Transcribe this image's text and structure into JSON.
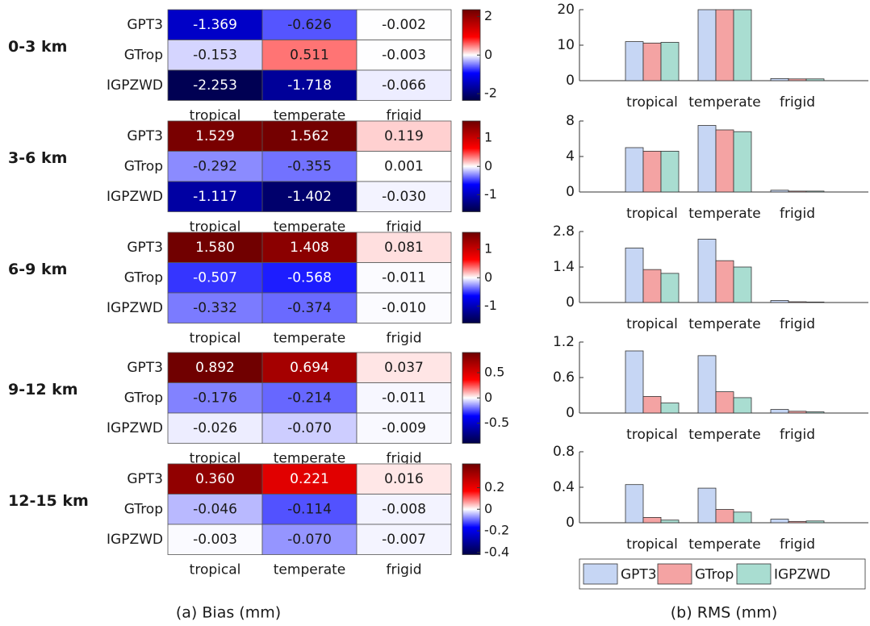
{
  "captions": [
    "(a) Bias (mm)",
    "(b) RMS (mm)"
  ],
  "chart_data": [
    {
      "type": "heatmap",
      "label": "0-3 km",
      "rows": [
        "GPT3",
        "GTrop",
        "IGPZWD"
      ],
      "columns": [
        "tropical",
        "temperate",
        "frigid"
      ],
      "values": [
        [
          -1.369,
          -0.626,
          -0.002
        ],
        [
          -0.153,
          0.511,
          -0.003
        ],
        [
          -2.253,
          -1.718,
          -0.066
        ]
      ],
      "value_labels": [
        [
          "-1.369",
          "-0.626",
          "-0.002"
        ],
        [
          "-0.153",
          "0.511",
          "-0.003"
        ],
        [
          "-2.253",
          "-1.718",
          "-0.066"
        ]
      ],
      "clim": [
        -2.35,
        2.35
      ],
      "cticks": [
        2,
        0,
        -2
      ],
      "colormap": "blue-white-red"
    },
    {
      "type": "heatmap",
      "label": "3-6 km",
      "rows": [
        "GPT3",
        "GTrop",
        "IGPZWD"
      ],
      "columns": [
        "tropical",
        "temperate",
        "frigid"
      ],
      "values": [
        [
          1.529,
          1.562,
          0.119
        ],
        [
          -0.292,
          -0.355,
          0.001
        ],
        [
          -1.117,
          -1.402,
          -0.03
        ]
      ],
      "value_labels": [
        [
          "1.529",
          "1.562",
          "0.119"
        ],
        [
          "-0.292",
          "-0.355",
          "0.001"
        ],
        [
          "-1.117",
          "-1.402",
          "-0.030"
        ]
      ],
      "clim": [
        -1.6,
        1.6
      ],
      "cticks": [
        1,
        0,
        -1
      ],
      "colormap": "blue-white-red"
    },
    {
      "type": "heatmap",
      "label": "6-9 km",
      "rows": [
        "GPT3",
        "GTrop",
        "IGPZWD"
      ],
      "columns": [
        "tropical",
        "temperate",
        "frigid"
      ],
      "values": [
        [
          1.58,
          1.408,
          0.081
        ],
        [
          -0.507,
          -0.568,
          -0.011
        ],
        [
          -0.332,
          -0.374,
          -0.01
        ]
      ],
      "value_labels": [
        [
          "1.580",
          "1.408",
          "0.081"
        ],
        [
          "-0.507",
          "-0.568",
          "-0.011"
        ],
        [
          "-0.332",
          "-0.374",
          "-0.010"
        ]
      ],
      "clim": [
        -1.6,
        1.6
      ],
      "cticks": [
        1,
        0,
        -1
      ],
      "colormap": "blue-white-red"
    },
    {
      "type": "heatmap",
      "label": "9-12 km",
      "rows": [
        "GPT3",
        "GTrop",
        "IGPZWD"
      ],
      "columns": [
        "tropical",
        "temperate",
        "frigid"
      ],
      "values": [
        [
          0.892,
          0.694,
          0.037
        ],
        [
          -0.176,
          -0.214,
          -0.011
        ],
        [
          -0.026,
          -0.07,
          -0.009
        ]
      ],
      "value_labels": [
        [
          "0.892",
          "0.694",
          "0.037"
        ],
        [
          "-0.176",
          "-0.214",
          "-0.011"
        ],
        [
          "-0.026",
          "-0.070",
          "-0.009"
        ]
      ],
      "clim": [
        -0.9,
        0.9
      ],
      "cticks": [
        0.5,
        0,
        -0.5
      ],
      "colormap": "blue-white-red"
    },
    {
      "type": "heatmap",
      "label": "12-15 km",
      "rows": [
        "GPT3",
        "GTrop",
        "IGPZWD"
      ],
      "columns": [
        "tropical",
        "temperate",
        "frigid"
      ],
      "values": [
        [
          0.36,
          0.221,
          0.016
        ],
        [
          -0.046,
          -0.114,
          -0.008
        ],
        [
          -0.003,
          -0.07,
          -0.007
        ]
      ],
      "value_labels": [
        [
          "0.360",
          "0.221",
          "0.016"
        ],
        [
          "-0.046",
          "-0.114",
          "-0.008"
        ],
        [
          "-0.003",
          "-0.070",
          "-0.007"
        ]
      ],
      "clim": [
        -0.42,
        0.42
      ],
      "cticks": [
        0.2,
        0,
        -0.2,
        -0.4
      ],
      "colormap": "blue-white-red"
    },
    {
      "type": "bar",
      "categories": [
        "tropical",
        "temperate",
        "frigid"
      ],
      "ylim": [
        0,
        20
      ],
      "yticks": [
        0,
        10,
        20
      ],
      "series": [
        {
          "name": "GPT3",
          "color": "#c6d6f4",
          "values": [
            11,
            20,
            0.6
          ]
        },
        {
          "name": "GTrop",
          "color": "#f4a3a3",
          "values": [
            10.6,
            20,
            0.5
          ]
        },
        {
          "name": "IGPZWD",
          "color": "#a9ddd1",
          "values": [
            10.8,
            20,
            0.5
          ]
        }
      ]
    },
    {
      "type": "bar",
      "categories": [
        "tropical",
        "temperate",
        "frigid"
      ],
      "ylim": [
        0,
        8
      ],
      "yticks": [
        0,
        4,
        8
      ],
      "series": [
        {
          "name": "GPT3",
          "color": "#c6d6f4",
          "values": [
            5.0,
            7.5,
            0.2
          ]
        },
        {
          "name": "GTrop",
          "color": "#f4a3a3",
          "values": [
            4.6,
            7.0,
            0.1
          ]
        },
        {
          "name": "IGPZWD",
          "color": "#a9ddd1",
          "values": [
            4.6,
            6.8,
            0.1
          ]
        }
      ]
    },
    {
      "type": "bar",
      "categories": [
        "tropical",
        "temperate",
        "frigid"
      ],
      "ylim": [
        0,
        2.8
      ],
      "yticks": [
        0,
        1.4,
        2.8
      ],
      "series": [
        {
          "name": "GPT3",
          "color": "#c6d6f4",
          "values": [
            2.15,
            2.5,
            0.08
          ]
        },
        {
          "name": "GTrop",
          "color": "#f4a3a3",
          "values": [
            1.3,
            1.65,
            0.03
          ]
        },
        {
          "name": "IGPZWD",
          "color": "#a9ddd1",
          "values": [
            1.15,
            1.4,
            0.02
          ]
        }
      ]
    },
    {
      "type": "bar",
      "categories": [
        "tropical",
        "temperate",
        "frigid"
      ],
      "ylim": [
        0,
        1.2
      ],
      "yticks": [
        0,
        0.6,
        1.2
      ],
      "series": [
        {
          "name": "GPT3",
          "color": "#c6d6f4",
          "values": [
            1.05,
            0.97,
            0.06
          ]
        },
        {
          "name": "GTrop",
          "color": "#f4a3a3",
          "values": [
            0.28,
            0.36,
            0.03
          ]
        },
        {
          "name": "IGPZWD",
          "color": "#a9ddd1",
          "values": [
            0.17,
            0.26,
            0.02
          ]
        }
      ]
    },
    {
      "type": "bar",
      "categories": [
        "tropical",
        "temperate",
        "frigid"
      ],
      "ylim": [
        0,
        0.8
      ],
      "yticks": [
        0,
        0.4,
        0.8
      ],
      "legend": "below",
      "series": [
        {
          "name": "GPT3",
          "color": "#c6d6f4",
          "values": [
            0.43,
            0.39,
            0.04
          ]
        },
        {
          "name": "GTrop",
          "color": "#f4a3a3",
          "values": [
            0.06,
            0.15,
            0.015
          ]
        },
        {
          "name": "IGPZWD",
          "color": "#a9ddd1",
          "values": [
            0.03,
            0.12,
            0.02
          ]
        }
      ]
    }
  ]
}
